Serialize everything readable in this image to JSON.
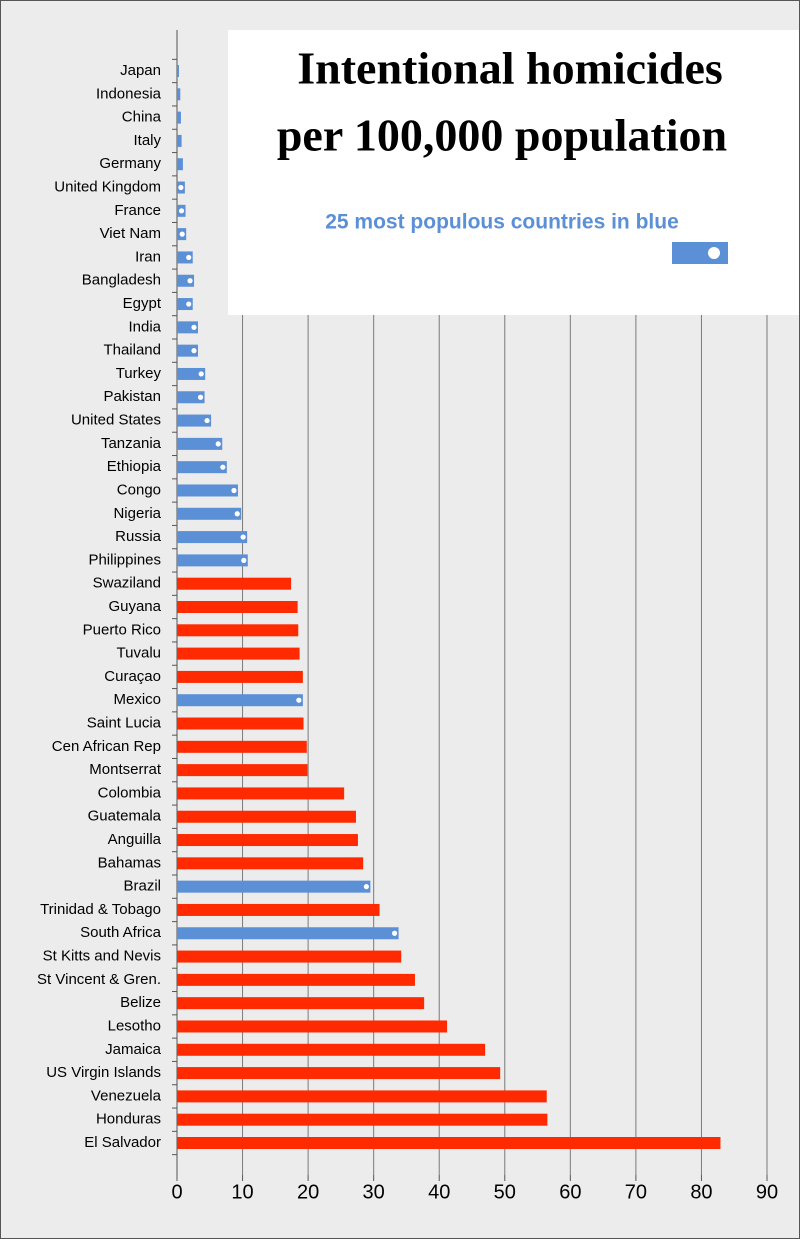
{
  "chart_data": {
    "type": "bar",
    "orientation": "horizontal",
    "title": [
      "Intentional homicides",
      "per 100,000 population"
    ],
    "subtitle": "25 most populous countries in blue",
    "categories": [
      "Japan",
      "Indonesia",
      "China",
      "Italy",
      "Germany",
      "United Kingdom",
      "France",
      "Viet Nam",
      "Iran",
      "Bangladesh",
      "Egypt",
      "India",
      "Thailand",
      "Turkey",
      "Pakistan",
      "United States",
      "Tanzania",
      "Ethiopia",
      "Congo",
      "Nigeria",
      "Russia",
      "Philippines",
      "Swaziland",
      "Guyana",
      "Puerto Rico",
      "Tuvalu",
      "Curaçao",
      "Mexico",
      "Saint Lucia",
      "Cen African Rep",
      "Montserrat",
      "Colombia",
      "Guatemala",
      "Anguilla",
      "Bahamas",
      "Brazil",
      "Trinidad & Tobago",
      "South Africa",
      "St Kitts and Nevis",
      "St Vincent & Gren.",
      "Belize",
      "Lesotho",
      "Jamaica",
      "US Virgin Islands",
      "Venezuela",
      "Honduras",
      "El Salvador"
    ],
    "values": [
      0.3,
      0.5,
      0.6,
      0.7,
      0.9,
      1.2,
      1.3,
      1.4,
      2.4,
      2.6,
      2.4,
      3.2,
      3.2,
      4.3,
      4.2,
      5.2,
      6.9,
      7.6,
      9.3,
      9.8,
      10.7,
      10.8,
      17.4,
      18.4,
      18.5,
      18.7,
      19.2,
      19.2,
      19.3,
      19.8,
      19.9,
      25.5,
      27.3,
      27.6,
      28.4,
      29.5,
      30.9,
      33.8,
      34.2,
      36.3,
      37.7,
      41.2,
      47.0,
      49.3,
      56.4,
      56.5,
      82.9
    ],
    "colors": [
      "#5b8fd6",
      "#5b8fd6",
      "#5b8fd6",
      "#5b8fd6",
      "#5b8fd6",
      "#5b8fd6",
      "#5b8fd6",
      "#5b8fd6",
      "#5b8fd6",
      "#5b8fd6",
      "#5b8fd6",
      "#5b8fd6",
      "#5b8fd6",
      "#5b8fd6",
      "#5b8fd6",
      "#5b8fd6",
      "#5b8fd6",
      "#5b8fd6",
      "#5b8fd6",
      "#5b8fd6",
      "#5b8fd6",
      "#5b8fd6",
      "#ff2a00",
      "#ff2a00",
      "#ff2a00",
      "#ff2a00",
      "#ff2a00",
      "#5b8fd6",
      "#ff2a00",
      "#ff2a00",
      "#ff2a00",
      "#ff2a00",
      "#ff2a00",
      "#ff2a00",
      "#ff2a00",
      "#5b8fd6",
      "#ff2a00",
      "#5b8fd6",
      "#ff2a00",
      "#ff2a00",
      "#ff2a00",
      "#ff2a00",
      "#ff2a00",
      "#ff2a00",
      "#ff2a00",
      "#ff2a00",
      "#ff2a00"
    ],
    "xlim": [
      0,
      90
    ],
    "xticks": [
      0,
      10,
      20,
      30,
      40,
      50,
      60,
      70,
      80,
      90
    ],
    "grid": true
  }
}
